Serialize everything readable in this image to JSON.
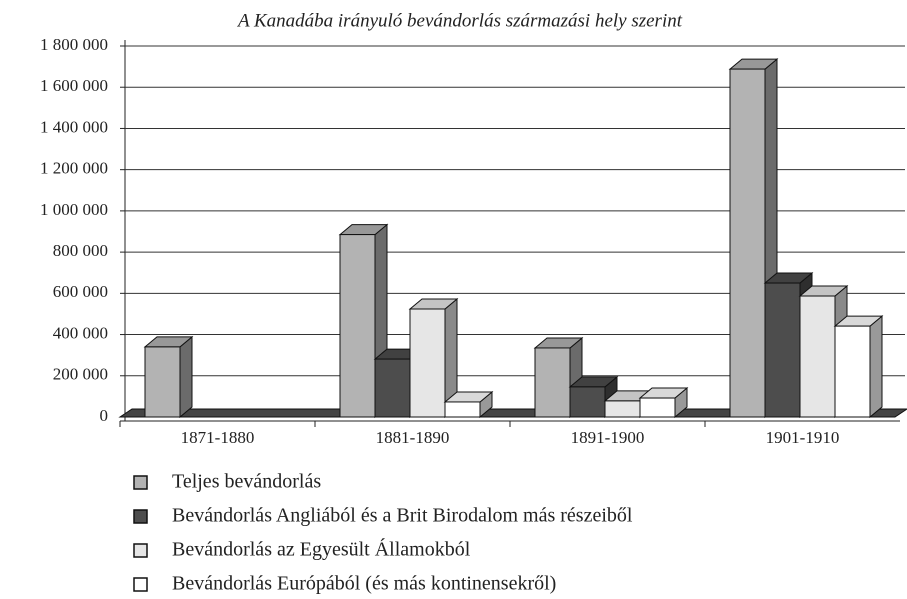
{
  "chart_data": {
    "type": "bar3d",
    "title": "A Kanadába irányuló bevándorlás származási hely szerint",
    "categories": [
      "1871-1880",
      "1881-1890",
      "1891-1900",
      "1901-1910"
    ],
    "series": [
      {
        "name": "Teljes bevándorlás",
        "color": "#b3b3b3",
        "values": [
          340000,
          885000,
          335000,
          1688000
        ]
      },
      {
        "name": "Bevándorlás Angliából és a Brit Birodalom más részeiből",
        "color": "#4d4d4d",
        "values": [
          0,
          281000,
          146000,
          650000
        ]
      },
      {
        "name": "Bevándorlás az Egyesült Államokból",
        "color": "#e6e6e6",
        "values": [
          0,
          524000,
          78000,
          587000
        ]
      },
      {
        "name": "Bevándorlás Európából (és más kontinensekről)",
        "color": "#ffffff",
        "values": [
          0,
          73000,
          92000,
          441000
        ]
      }
    ],
    "ylim": [
      0,
      1800000
    ],
    "yticks": [
      0,
      {
        "value": 200000,
        "label": "200 000"
      },
      {
        "value": 400000,
        "label": "400 000"
      },
      {
        "value": 600000,
        "label": "600 000"
      },
      {
        "value": 800000,
        "label": "800 000"
      },
      {
        "value": 1000000,
        "label": "1 000 000"
      },
      {
        "value": 1200000,
        "label": "1 200 000"
      },
      {
        "value": 1400000,
        "label": "1 400 000"
      },
      {
        "value": 1600000,
        "label": "1 600 000"
      },
      {
        "value": 1800000,
        "label": "1 800 000"
      }
    ],
    "grid": true
  }
}
